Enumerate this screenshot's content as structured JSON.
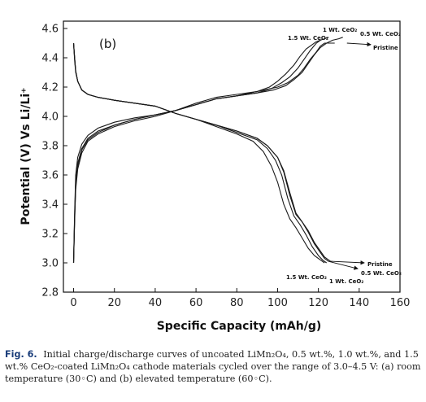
{
  "chart_data": {
    "type": "line",
    "panel_label": "(b)",
    "xlabel": "Specific Capacity (mAh/g)",
    "ylabel": "Potential (V) Vs Li/Li⁺",
    "xlim": [
      -5,
      160
    ],
    "ylim": [
      2.8,
      4.65
    ],
    "xticks": [
      0,
      20,
      40,
      60,
      80,
      100,
      120,
      140,
      160
    ],
    "yticks": [
      2.8,
      3.0,
      3.2,
      3.4,
      3.6,
      3.8,
      4.0,
      4.2,
      4.4,
      4.6
    ],
    "grid": false,
    "series": [
      {
        "name": "Pristine",
        "charge": {
          "x": [
            0,
            0.5,
            1,
            2,
            4,
            7,
            12,
            20,
            30,
            40,
            50,
            60,
            70,
            80,
            90,
            100,
            105,
            110,
            113,
            116,
            119,
            121,
            123,
            125,
            128
          ],
          "y": [
            3.0,
            3.35,
            3.6,
            3.72,
            3.81,
            3.87,
            3.92,
            3.96,
            3.99,
            4.01,
            4.04,
            4.09,
            4.13,
            4.15,
            4.17,
            4.2,
            4.23,
            4.28,
            4.33,
            4.39,
            4.44,
            4.48,
            4.5,
            4.5,
            4.5
          ]
        },
        "discharge": {
          "x": [
            0,
            0.5,
            1,
            2,
            4,
            7,
            12,
            20,
            30,
            40,
            50,
            60,
            70,
            80,
            90,
            95,
            100,
            103,
            106,
            109,
            112,
            115,
            118,
            121,
            123,
            125,
            126,
            127
          ],
          "y": [
            4.5,
            4.38,
            4.3,
            4.24,
            4.18,
            4.15,
            4.13,
            4.11,
            4.09,
            4.07,
            4.02,
            3.98,
            3.94,
            3.9,
            3.85,
            3.8,
            3.72,
            3.62,
            3.46,
            3.33,
            3.28,
            3.22,
            3.14,
            3.08,
            3.04,
            3.02,
            3.01,
            3.01
          ]
        }
      },
      {
        "name": "0.5 Wt. CeO₂",
        "charge": {
          "x": [
            0,
            0.5,
            1,
            2,
            4,
            7,
            12,
            20,
            30,
            40,
            50,
            60,
            70,
            80,
            90,
            98,
            104,
            108,
            112,
            115,
            118,
            121,
            124,
            127,
            130,
            132
          ],
          "y": [
            3.0,
            3.32,
            3.55,
            3.68,
            3.78,
            3.85,
            3.9,
            3.94,
            3.98,
            4.01,
            4.04,
            4.08,
            4.12,
            4.14,
            4.16,
            4.18,
            4.21,
            4.25,
            4.3,
            4.36,
            4.42,
            4.47,
            4.5,
            4.52,
            4.53,
            4.54
          ]
        },
        "discharge": {
          "x": [
            0,
            0.5,
            1,
            2,
            4,
            7,
            12,
            20,
            30,
            40,
            50,
            60,
            70,
            80,
            90,
            95,
            100,
            103,
            106,
            109,
            112,
            115,
            118,
            121,
            123,
            125
          ],
          "y": [
            4.5,
            4.4,
            4.31,
            4.24,
            4.18,
            4.15,
            4.13,
            4.11,
            4.09,
            4.07,
            4.02,
            3.98,
            3.94,
            3.9,
            3.85,
            3.8,
            3.72,
            3.63,
            3.48,
            3.34,
            3.28,
            3.21,
            3.13,
            3.07,
            3.03,
            3.01
          ]
        }
      },
      {
        "name": "1 Wt. CeO₂",
        "charge": {
          "x": [
            0,
            0.5,
            1,
            2,
            4,
            7,
            12,
            20,
            30,
            40,
            50,
            60,
            70,
            80,
            90,
            97,
            102,
            106,
            110,
            113,
            116,
            119,
            121,
            123,
            125
          ],
          "y": [
            3.0,
            3.3,
            3.52,
            3.66,
            3.77,
            3.84,
            3.89,
            3.94,
            3.98,
            4.01,
            4.04,
            4.08,
            4.12,
            4.14,
            4.16,
            4.19,
            4.23,
            4.27,
            4.33,
            4.39,
            4.45,
            4.5,
            4.52,
            4.53,
            4.54
          ]
        },
        "discharge": {
          "x": [
            0,
            0.5,
            1,
            2,
            4,
            7,
            12,
            20,
            30,
            40,
            50,
            60,
            70,
            80,
            90,
            95,
            99,
            102,
            105,
            108,
            111,
            114,
            117,
            120,
            122,
            124
          ],
          "y": [
            4.5,
            4.4,
            4.31,
            4.24,
            4.18,
            4.15,
            4.13,
            4.11,
            4.09,
            4.07,
            4.02,
            3.98,
            3.94,
            3.89,
            3.84,
            3.78,
            3.7,
            3.6,
            3.44,
            3.32,
            3.26,
            3.19,
            3.11,
            3.05,
            3.02,
            3.0
          ]
        }
      },
      {
        "name": "1.5 Wt. CeO₂",
        "charge": {
          "x": [
            0,
            0.5,
            1,
            2,
            4,
            7,
            12,
            20,
            30,
            40,
            50,
            60,
            70,
            80,
            90,
            96,
            100,
            104,
            108,
            111,
            114,
            117,
            119,
            121
          ],
          "y": [
            3.0,
            3.28,
            3.5,
            3.64,
            3.75,
            3.83,
            3.88,
            3.93,
            3.97,
            4.0,
            4.04,
            4.08,
            4.12,
            4.14,
            4.17,
            4.2,
            4.24,
            4.29,
            4.35,
            4.41,
            4.46,
            4.49,
            4.51,
            4.52
          ]
        },
        "discharge": {
          "x": [
            0,
            0.5,
            1,
            2,
            4,
            7,
            12,
            20,
            30,
            40,
            50,
            60,
            70,
            80,
            88,
            93,
            97,
            100,
            103,
            106,
            109,
            112,
            115,
            118,
            121,
            123
          ],
          "y": [
            4.5,
            4.4,
            4.31,
            4.24,
            4.18,
            4.15,
            4.13,
            4.11,
            4.09,
            4.07,
            4.02,
            3.98,
            3.93,
            3.88,
            3.83,
            3.76,
            3.66,
            3.55,
            3.4,
            3.3,
            3.24,
            3.17,
            3.1,
            3.05,
            3.02,
            3.0
          ]
        }
      }
    ],
    "annotations": {
      "charge_end": [
        "1.5 Wt. CeO₂",
        "1 Wt. CeO₂",
        "0.5 Wt. CeO₂",
        "Pristine"
      ],
      "discharge_end": [
        "Pristine",
        "0.5 Wt. CeO₂",
        "1.5 Wt. CeO₂",
        "1 Wt. CeO₂"
      ]
    }
  },
  "caption": {
    "label": "Fig. 6.",
    "text": "Initial charge/discharge curves of uncoated LiMn₂O₄, 0.5 wt.%, 1.0 wt.%, and 1.5 wt.% CeO₂-coated LiMn₂O₄ cathode materials cycled over the range of 3.0–4.5 V: (a) room temperature (30◦C) and (b) elevated temperature (60◦C)."
  }
}
